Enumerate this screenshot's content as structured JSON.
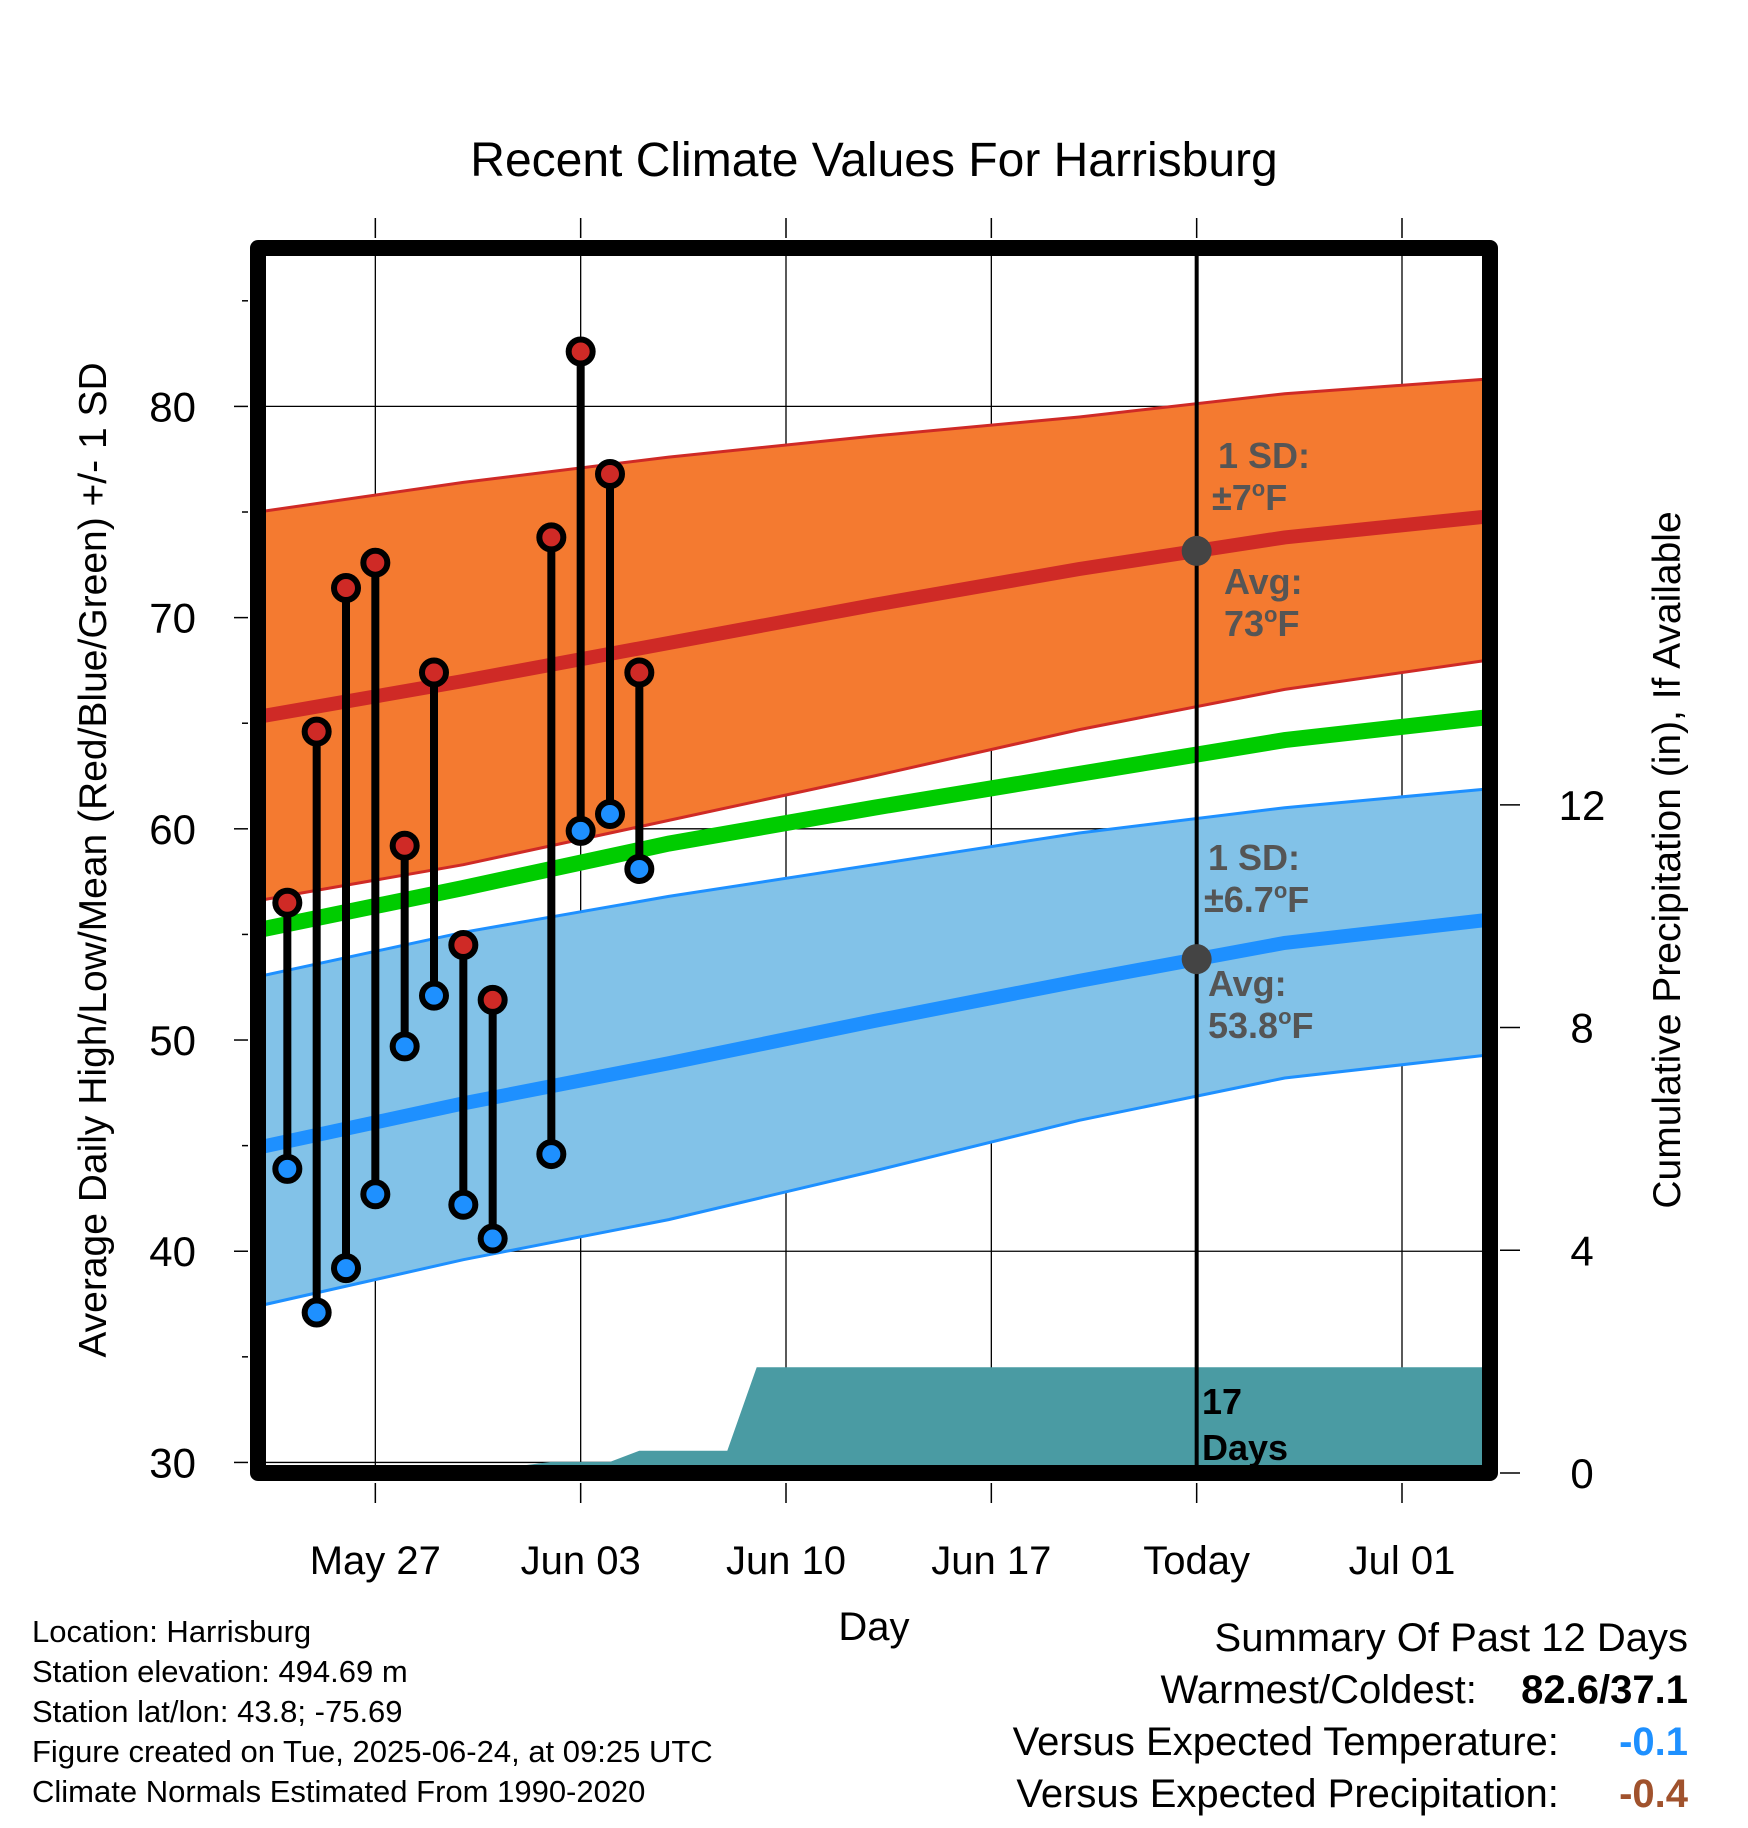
{
  "chart_data": {
    "type": "line",
    "title": "Recent Climate Values For Harrisburg",
    "xlabel": "Day",
    "ylabel": "Average Daily High/Low/Mean (Red/Blue/Green) +/- 1 SD",
    "y2label": "Cumulative Precipitation (in), If Available",
    "x_range": [
      "2025-05-23",
      "2025-07-04"
    ],
    "ylim": [
      29.5,
      87.5
    ],
    "y2lim": [
      0,
      22
    ],
    "y_ticks": [
      30,
      40,
      50,
      60,
      70,
      80
    ],
    "y2_ticks": [
      0,
      4,
      8,
      12
    ],
    "x_ticks": [
      {
        "date": "2025-05-27",
        "label": "May 27"
      },
      {
        "date": "2025-06-03",
        "label": "Jun 03"
      },
      {
        "date": "2025-06-10",
        "label": "Jun 10"
      },
      {
        "date": "2025-06-17",
        "label": "Jun 17"
      },
      {
        "date": "2025-06-24",
        "label": "Today"
      },
      {
        "date": "2025-07-01",
        "label": "Jul 01"
      }
    ],
    "grid": true,
    "today": "2025-06-24",
    "normals": {
      "dates": [
        "2025-05-23",
        "2025-05-30",
        "2025-06-06",
        "2025-06-13",
        "2025-06-20",
        "2025-06-27",
        "2025-07-04"
      ],
      "high_mean": [
        65.3,
        67.0,
        68.8,
        70.6,
        72.3,
        73.8,
        74.8
      ],
      "high_upper": [
        75.0,
        76.4,
        77.6,
        78.6,
        79.5,
        80.6,
        81.3
      ],
      "high_lower": [
        56.6,
        58.3,
        60.4,
        62.5,
        64.7,
        66.6,
        68.0
      ],
      "mean": [
        55.2,
        57.2,
        59.3,
        61.0,
        62.6,
        64.2,
        65.3
      ],
      "low_mean": [
        44.9,
        47.0,
        48.9,
        50.9,
        52.8,
        54.6,
        55.7
      ],
      "low_upper": [
        53.0,
        55.1,
        56.8,
        58.3,
        59.8,
        61.0,
        61.9
      ],
      "low_lower": [
        37.4,
        39.6,
        41.5,
        43.8,
        46.2,
        48.2,
        49.3
      ]
    },
    "observed": [
      {
        "date": "2025-05-24",
        "high": 56.5,
        "low": 43.9
      },
      {
        "date": "2025-05-25",
        "high": 64.6,
        "low": 37.1
      },
      {
        "date": "2025-05-26",
        "high": 71.4,
        "low": 39.2
      },
      {
        "date": "2025-05-27",
        "high": 72.6,
        "low": 42.7
      },
      {
        "date": "2025-05-28",
        "high": 59.2,
        "low": 49.7
      },
      {
        "date": "2025-05-29",
        "high": 67.4,
        "low": 52.1
      },
      {
        "date": "2025-05-30",
        "high": 54.5,
        "low": 42.2
      },
      {
        "date": "2025-05-31",
        "high": 51.9,
        "low": 40.6
      },
      {
        "date": "2025-06-02",
        "high": 73.8,
        "low": 44.6
      },
      {
        "date": "2025-06-03",
        "high": 82.6,
        "low": 59.9
      },
      {
        "date": "2025-06-04",
        "high": 76.8,
        "low": 60.7
      },
      {
        "date": "2025-06-05",
        "high": 67.4,
        "low": 58.1
      }
    ],
    "precip": {
      "dates": [
        "2025-05-30",
        "2025-06-02",
        "2025-06-04",
        "2025-06-05",
        "2025-06-06",
        "2025-06-07",
        "2025-06-08",
        "2025-06-09",
        "2025-07-04"
      ],
      "values": [
        0.0,
        0.2,
        0.2,
        0.4,
        0.4,
        0.4,
        0.4,
        1.9,
        1.9
      ]
    },
    "annotations": {
      "high_sd_line1": "1 SD:",
      "high_sd_line2": "±7",
      "high_avg_line1": "Avg:",
      "high_avg_line2": "73",
      "low_sd_line1": "1 SD:",
      "low_sd_line2": "±6.7",
      "low_avg_line1": "Avg:",
      "low_avg_line2": "53.8",
      "degree_mark": "o",
      "unit": "F",
      "precip_days_line1": "17",
      "precip_days_line2": "Days"
    },
    "colors": {
      "high_band": "#f47a30",
      "high_line": "#cf2a26",
      "mean_line": "#00cc00",
      "low_band": "#82c2e8",
      "low_line": "#1e90ff",
      "precip": "#4a9ba3",
      "high_dot": "#cf2a26",
      "low_dot": "#1e90ff",
      "annotation": "#555555",
      "temp_anomaly": "#1e90ff",
      "precip_anomaly": "#a0522d"
    }
  },
  "footer": {
    "location": "Location: Harrisburg",
    "elevation": "Station elevation: 494.69 m",
    "latlon": "Station lat/lon: 43.8; -75.69",
    "created": "Figure created on Tue, 2025-06-24, at 09:25 UTC",
    "normals": "Climate Normals Estimated From 1990-2020"
  },
  "summary": {
    "title": "Summary Of Past 12 Days",
    "warm_cold_label": "Warmest/Coldest:",
    "warm_cold_value": "82.6/37.1",
    "temp_label": "Versus Expected Temperature:",
    "temp_value": "-0.1",
    "precip_label": "Versus Expected Precipitation:",
    "precip_value": "-0.4"
  }
}
